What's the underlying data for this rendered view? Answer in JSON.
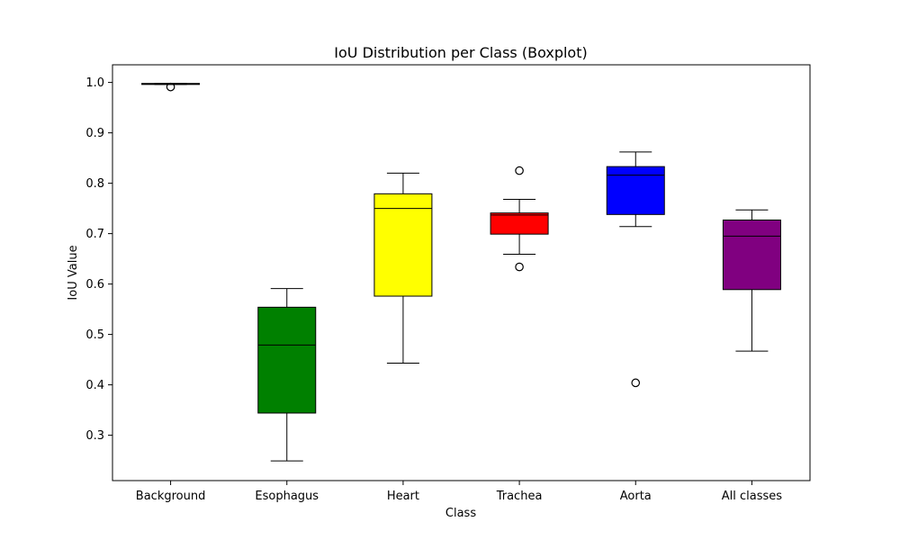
{
  "chart_data": {
    "type": "boxplot",
    "title": "IoU Distribution per Class (Boxplot)",
    "xlabel": "Class",
    "ylabel": "IoU Value",
    "ylim": [
      0.21,
      1.035
    ],
    "yticks": [
      0.3,
      0.4,
      0.5,
      0.6,
      0.7,
      0.8,
      0.9,
      1.0
    ],
    "ytick_labels": [
      "0.3",
      "0.4",
      "0.5",
      "0.6",
      "0.7",
      "0.8",
      "0.9",
      "1.0"
    ],
    "categories": [
      "Background",
      "Esophagus",
      "Heart",
      "Trachea",
      "Aorta",
      "All classes"
    ],
    "grid": false,
    "boxes": [
      {
        "category": "Background",
        "color": "#000000",
        "whisker_low": 0.996,
        "q1": 0.996,
        "median": 0.997,
        "q3": 0.998,
        "whisker_high": 0.998,
        "outliers": [
          0.991
        ]
      },
      {
        "category": "Esophagus",
        "color": "#008000",
        "whisker_low": 0.249,
        "q1": 0.344,
        "median": 0.479,
        "q3": 0.554,
        "whisker_high": 0.591,
        "outliers": []
      },
      {
        "category": "Heart",
        "color": "#ffff00",
        "whisker_low": 0.443,
        "q1": 0.576,
        "median": 0.75,
        "q3": 0.779,
        "whisker_high": 0.82,
        "outliers": []
      },
      {
        "category": "Trachea",
        "color": "#ff0000",
        "whisker_low": 0.659,
        "q1": 0.699,
        "median": 0.737,
        "q3": 0.741,
        "whisker_high": 0.768,
        "outliers": [
          0.634,
          0.825
        ]
      },
      {
        "category": "Aorta",
        "color": "#0000ff",
        "whisker_low": 0.714,
        "q1": 0.738,
        "median": 0.816,
        "q3": 0.833,
        "whisker_high": 0.862,
        "outliers": [
          0.404
        ]
      },
      {
        "category": "All classes",
        "color": "#800080",
        "whisker_low": 0.467,
        "q1": 0.589,
        "median": 0.695,
        "q3": 0.727,
        "whisker_high": 0.747,
        "outliers": []
      }
    ]
  }
}
